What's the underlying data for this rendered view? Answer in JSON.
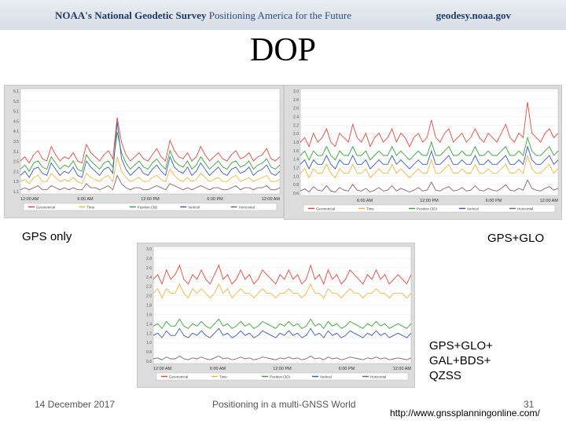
{
  "header": {
    "org_bold": "NOAA's National Geodetic Survey",
    "tagline": "Positioning America for the Future",
    "site": "geodesy.noaa.gov"
  },
  "slide": {
    "title": "DOP"
  },
  "labels": {
    "gps_only": "GPS only",
    "gps_glo": "GPS+GLO",
    "multi_line1": "GPS+GLO+",
    "multi_line2": "GAL+BDS+",
    "multi_line3": "QZSS"
  },
  "footer": {
    "date": "14 December 2017",
    "subject": "Positioning in a multi-GNSS World",
    "page": "31",
    "url": "http://www.gnssplanningonline.com/"
  },
  "colors": {
    "geometrical": "#e8463b",
    "time": "#f4b43a",
    "position": "#3aa63a",
    "vertical": "#3b5bbf",
    "horizontal": "#8a6060"
  },
  "chart_data": [
    {
      "type": "line",
      "yticks": [
        "6.1",
        "5.5",
        "5.1",
        "4.5",
        "4.1",
        "3.5",
        "3.1",
        "2.5",
        "2.1",
        "1.5",
        "1.1"
      ],
      "xticks": [
        "12:00 AM",
        "6:00 AM",
        "12:00 PM",
        "6:00 PM",
        "12:00 AM"
      ],
      "ylim": [
        1.0,
        6.1
      ],
      "legend": [
        "Geometrical",
        "Time",
        "Position (3d)",
        "Vertical",
        "Horizontal"
      ],
      "series": [
        {
          "name": "Geometrical",
          "color": "#e8463b",
          "values": [
            2.6,
            2.8,
            2.5,
            2.9,
            3.1,
            2.7,
            2.6,
            3.3,
            2.9,
            2.6,
            2.8,
            2.7,
            3.0,
            2.6,
            2.5,
            3.4,
            3.0,
            2.8,
            2.6,
            2.9,
            3.1,
            2.7,
            4.7,
            3.5,
            2.9,
            2.6,
            2.8,
            3.0,
            2.7,
            2.6,
            2.9,
            3.2,
            2.8,
            2.6,
            3.6,
            3.1,
            2.8,
            2.7,
            3.0,
            2.6,
            2.8,
            3.3,
            2.9,
            2.6,
            2.8,
            3.0,
            2.7,
            2.6,
            2.9,
            3.1,
            2.7,
            2.8,
            3.0,
            2.6,
            2.8,
            2.9,
            3.2,
            2.7,
            2.6,
            2.8
          ]
        },
        {
          "name": "Time",
          "color": "#f4b43a",
          "values": [
            1.6,
            1.7,
            1.5,
            1.8,
            1.9,
            1.6,
            1.6,
            2.0,
            1.8,
            1.6,
            1.7,
            1.6,
            1.8,
            1.6,
            1.5,
            2.0,
            1.8,
            1.7,
            1.6,
            1.8,
            1.9,
            1.6,
            2.8,
            2.1,
            1.8,
            1.6,
            1.7,
            1.8,
            1.6,
            1.6,
            1.8,
            1.9,
            1.7,
            1.6,
            2.2,
            1.9,
            1.7,
            1.6,
            1.8,
            1.6,
            1.7,
            2.0,
            1.8,
            1.6,
            1.7,
            1.8,
            1.6,
            1.6,
            1.8,
            1.9,
            1.6,
            1.7,
            1.8,
            1.6,
            1.7,
            1.8,
            1.9,
            1.6,
            1.6,
            1.7
          ]
        },
        {
          "name": "Position (3d)",
          "color": "#3aa63a",
          "values": [
            2.2,
            2.4,
            2.1,
            2.5,
            2.6,
            2.3,
            2.2,
            2.8,
            2.5,
            2.2,
            2.4,
            2.3,
            2.6,
            2.2,
            2.1,
            2.9,
            2.6,
            2.4,
            2.2,
            2.5,
            2.6,
            2.3,
            4.0,
            3.0,
            2.5,
            2.2,
            2.4,
            2.6,
            2.3,
            2.2,
            2.5,
            2.7,
            2.4,
            2.2,
            3.1,
            2.6,
            2.4,
            2.3,
            2.6,
            2.2,
            2.4,
            2.8,
            2.5,
            2.2,
            2.4,
            2.6,
            2.3,
            2.2,
            2.5,
            2.6,
            2.3,
            2.4,
            2.6,
            2.2,
            2.4,
            2.5,
            2.7,
            2.3,
            2.2,
            2.4
          ]
        },
        {
          "name": "Vertical",
          "color": "#3b5bbf",
          "values": [
            1.9,
            2.1,
            1.8,
            2.2,
            2.3,
            2.0,
            1.9,
            2.5,
            2.2,
            1.9,
            2.1,
            2.0,
            2.3,
            1.9,
            1.8,
            2.6,
            2.3,
            2.1,
            1.9,
            2.2,
            2.3,
            2.0,
            4.5,
            2.7,
            2.2,
            1.9,
            2.1,
            2.3,
            2.0,
            1.9,
            2.2,
            2.4,
            2.1,
            1.9,
            2.8,
            2.3,
            2.1,
            2.0,
            2.3,
            1.9,
            2.1,
            2.5,
            2.2,
            1.9,
            2.1,
            2.3,
            2.0,
            1.9,
            2.2,
            2.3,
            2.0,
            2.1,
            2.3,
            1.9,
            2.1,
            2.2,
            2.4,
            2.0,
            1.9,
            2.1
          ]
        },
        {
          "name": "Horizontal",
          "color": "#8a6060",
          "values": [
            1.2,
            1.3,
            1.2,
            1.3,
            1.4,
            1.2,
            1.2,
            1.4,
            1.3,
            1.2,
            1.3,
            1.2,
            1.3,
            1.2,
            1.2,
            1.5,
            1.3,
            1.3,
            1.2,
            1.3,
            1.4,
            1.2,
            1.9,
            1.5,
            1.3,
            1.2,
            1.3,
            1.3,
            1.2,
            1.2,
            1.3,
            1.4,
            1.3,
            1.2,
            1.5,
            1.4,
            1.3,
            1.2,
            1.3,
            1.2,
            1.3,
            1.4,
            1.3,
            1.2,
            1.3,
            1.3,
            1.2,
            1.2,
            1.3,
            1.4,
            1.2,
            1.3,
            1.3,
            1.2,
            1.3,
            1.3,
            1.4,
            1.2,
            1.2,
            1.3
          ]
        }
      ]
    },
    {
      "type": "line",
      "yticks": [
        "3.0",
        "2.8",
        "2.6",
        "2.4",
        "2.2",
        "2.0",
        "1.8",
        "1.6",
        "1.4",
        "1.2",
        "1.0",
        "0.8",
        "0.6"
      ],
      "xticks": [
        "6:00 AM",
        "12:00 PM",
        "6:00 PM",
        "12:00 AM"
      ],
      "ylim": [
        0.6,
        3.0
      ],
      "legend": [
        "Geometrical",
        "Time",
        "Position (3D)",
        "Vertical",
        "Horizontal"
      ],
      "series": [
        {
          "name": "Geometrical",
          "color": "#e8463b",
          "values": [
            1.8,
            1.9,
            1.7,
            2.0,
            1.8,
            1.9,
            2.1,
            1.8,
            1.7,
            2.0,
            1.9,
            1.8,
            2.2,
            1.9,
            1.8,
            2.0,
            1.7,
            1.9,
            2.0,
            1.8,
            1.9,
            2.1,
            1.8,
            2.0,
            1.9,
            1.7,
            1.9,
            2.0,
            1.8,
            1.9,
            2.3,
            1.9,
            1.8,
            2.0,
            2.1,
            1.8,
            1.9,
            2.0,
            1.8,
            1.9,
            2.1,
            1.9,
            1.8,
            2.0,
            1.9,
            1.8,
            2.0,
            2.2,
            1.9,
            1.8,
            2.0,
            1.9,
            2.7,
            2.0,
            1.9,
            1.8,
            2.0,
            2.1,
            1.9,
            2.0
          ]
        },
        {
          "name": "Time",
          "color": "#f4b43a",
          "values": [
            1.1,
            1.2,
            1.0,
            1.2,
            1.1,
            1.1,
            1.3,
            1.1,
            1.0,
            1.2,
            1.1,
            1.1,
            1.3,
            1.1,
            1.1,
            1.2,
            1.0,
            1.1,
            1.2,
            1.1,
            1.1,
            1.3,
            1.1,
            1.2,
            1.1,
            1.0,
            1.1,
            1.2,
            1.1,
            1.1,
            1.4,
            1.1,
            1.1,
            1.2,
            1.3,
            1.1,
            1.1,
            1.2,
            1.1,
            1.1,
            1.3,
            1.1,
            1.1,
            1.2,
            1.1,
            1.1,
            1.2,
            1.3,
            1.1,
            1.1,
            1.2,
            1.1,
            1.5,
            1.2,
            1.1,
            1.1,
            1.2,
            1.3,
            1.1,
            1.2
          ]
        },
        {
          "name": "Position (3D)",
          "color": "#3aa63a",
          "values": [
            1.5,
            1.6,
            1.4,
            1.6,
            1.5,
            1.5,
            1.7,
            1.5,
            1.4,
            1.6,
            1.5,
            1.5,
            1.7,
            1.5,
            1.5,
            1.6,
            1.4,
            1.5,
            1.6,
            1.5,
            1.5,
            1.7,
            1.5,
            1.6,
            1.5,
            1.4,
            1.5,
            1.6,
            1.5,
            1.5,
            1.8,
            1.5,
            1.5,
            1.6,
            1.7,
            1.5,
            1.5,
            1.6,
            1.5,
            1.5,
            1.7,
            1.5,
            1.5,
            1.6,
            1.5,
            1.5,
            1.6,
            1.7,
            1.5,
            1.5,
            1.6,
            1.5,
            1.9,
            1.6,
            1.5,
            1.5,
            1.6,
            1.7,
            1.5,
            1.6
          ]
        },
        {
          "name": "Vertical",
          "color": "#3b5bbf",
          "values": [
            1.3,
            1.4,
            1.2,
            1.4,
            1.3,
            1.3,
            1.5,
            1.3,
            1.2,
            1.4,
            1.3,
            1.3,
            1.5,
            1.3,
            1.3,
            1.4,
            1.2,
            1.3,
            1.4,
            1.3,
            1.3,
            1.5,
            1.3,
            1.4,
            1.3,
            1.2,
            1.3,
            1.4,
            1.3,
            1.3,
            1.6,
            1.3,
            1.3,
            1.4,
            1.5,
            1.3,
            1.3,
            1.4,
            1.3,
            1.3,
            1.5,
            1.3,
            1.3,
            1.4,
            1.3,
            1.3,
            1.4,
            1.5,
            1.3,
            1.3,
            1.4,
            1.3,
            1.7,
            1.4,
            1.3,
            1.3,
            1.4,
            1.5,
            1.3,
            1.4
          ]
        },
        {
          "name": "Horizontal",
          "color": "#8a6060",
          "values": [
            0.7,
            0.75,
            0.68,
            0.8,
            0.72,
            0.7,
            0.82,
            0.7,
            0.68,
            0.78,
            0.72,
            0.7,
            0.85,
            0.72,
            0.7,
            0.76,
            0.68,
            0.72,
            0.78,
            0.7,
            0.72,
            0.82,
            0.7,
            0.76,
            0.72,
            0.68,
            0.72,
            0.78,
            0.7,
            0.72,
            0.9,
            0.72,
            0.7,
            0.76,
            0.8,
            0.7,
            0.72,
            0.78,
            0.7,
            0.72,
            0.82,
            0.72,
            0.7,
            0.76,
            0.72,
            0.7,
            0.76,
            0.84,
            0.72,
            0.7,
            0.76,
            0.72,
            0.95,
            0.76,
            0.72,
            0.7,
            0.76,
            0.8,
            0.72,
            0.76
          ]
        }
      ]
    },
    {
      "type": "line",
      "yticks": [
        "3.0",
        "2.8",
        "2.6",
        "2.4",
        "2.2",
        "2.0",
        "1.8",
        "1.6",
        "1.4",
        "1.2",
        "1.0",
        "0.8",
        "0.6"
      ],
      "xticks": [
        "12:00 AM",
        "6:00 AM",
        "12:00 PM",
        "6:00 PM",
        "12:00 AM"
      ],
      "ylim": [
        0.5,
        3.0
      ],
      "legend": [
        "Geometrical",
        "Time",
        "Position (3D)",
        "Vertical",
        "Horizontal"
      ],
      "series": [
        {
          "name": "Geometrical",
          "color": "#e8463b",
          "values": [
            2.3,
            2.4,
            2.2,
            2.5,
            2.3,
            2.4,
            2.6,
            2.3,
            2.2,
            2.4,
            2.3,
            2.5,
            2.3,
            2.2,
            2.4,
            2.6,
            2.3,
            2.4,
            2.2,
            2.3,
            2.5,
            2.3,
            2.4,
            2.2,
            2.3,
            2.5,
            2.4,
            2.3,
            2.2,
            2.4,
            2.3,
            2.5,
            2.3,
            2.4,
            2.2,
            2.3,
            2.6,
            2.3,
            2.4,
            2.2,
            2.5,
            2.3,
            2.4,
            2.2,
            2.3,
            2.5,
            2.4,
            2.3,
            2.2,
            2.4,
            2.3,
            2.5,
            2.3,
            2.4,
            2.2,
            2.3,
            2.4,
            2.3,
            2.2,
            2.4
          ]
        },
        {
          "name": "Time",
          "color": "#f4b43a",
          "values": [
            2.0,
            2.1,
            1.9,
            2.1,
            2.0,
            2.0,
            2.2,
            2.0,
            1.9,
            2.1,
            2.0,
            2.1,
            2.0,
            1.9,
            2.0,
            2.2,
            2.0,
            2.1,
            1.9,
            2.0,
            2.1,
            2.0,
            2.0,
            1.9,
            2.0,
            2.1,
            2.0,
            2.0,
            1.9,
            2.0,
            2.0,
            2.1,
            2.0,
            2.0,
            1.9,
            2.0,
            2.2,
            2.0,
            2.0,
            1.9,
            2.1,
            2.0,
            2.0,
            1.9,
            2.0,
            2.1,
            2.0,
            2.0,
            1.9,
            2.0,
            2.0,
            2.1,
            2.0,
            2.0,
            1.9,
            2.0,
            2.0,
            2.0,
            1.9,
            2.0
          ]
        },
        {
          "name": "Position (3D)",
          "color": "#3aa63a",
          "values": [
            1.3,
            1.35,
            1.25,
            1.4,
            1.3,
            1.3,
            1.45,
            1.3,
            1.25,
            1.35,
            1.3,
            1.4,
            1.3,
            1.25,
            1.35,
            1.45,
            1.3,
            1.35,
            1.25,
            1.3,
            1.4,
            1.3,
            1.35,
            1.25,
            1.3,
            1.4,
            1.35,
            1.3,
            1.25,
            1.35,
            1.3,
            1.4,
            1.3,
            1.35,
            1.25,
            1.3,
            1.45,
            1.3,
            1.35,
            1.25,
            1.4,
            1.3,
            1.35,
            1.25,
            1.3,
            1.4,
            1.35,
            1.3,
            1.25,
            1.35,
            1.3,
            1.4,
            1.3,
            1.35,
            1.25,
            1.3,
            1.35,
            1.3,
            1.25,
            1.35
          ]
        },
        {
          "name": "Vertical",
          "color": "#3b5bbf",
          "values": [
            1.1,
            1.15,
            1.05,
            1.2,
            1.1,
            1.1,
            1.25,
            1.1,
            1.05,
            1.15,
            1.1,
            1.2,
            1.1,
            1.05,
            1.15,
            1.25,
            1.1,
            1.15,
            1.05,
            1.1,
            1.2,
            1.1,
            1.15,
            1.05,
            1.1,
            1.2,
            1.15,
            1.1,
            1.05,
            1.15,
            1.1,
            1.2,
            1.1,
            1.15,
            1.05,
            1.1,
            1.25,
            1.1,
            1.15,
            1.05,
            1.2,
            1.1,
            1.15,
            1.05,
            1.1,
            1.2,
            1.15,
            1.1,
            1.05,
            1.15,
            1.1,
            1.2,
            1.1,
            1.15,
            1.05,
            1.1,
            1.15,
            1.1,
            1.05,
            1.15
          ]
        },
        {
          "name": "Horizontal",
          "color": "#8a6060",
          "values": [
            0.6,
            0.62,
            0.58,
            0.64,
            0.6,
            0.6,
            0.66,
            0.6,
            0.58,
            0.62,
            0.6,
            0.64,
            0.6,
            0.58,
            0.62,
            0.66,
            0.6,
            0.62,
            0.58,
            0.6,
            0.64,
            0.6,
            0.62,
            0.58,
            0.6,
            0.64,
            0.62,
            0.6,
            0.58,
            0.62,
            0.6,
            0.64,
            0.6,
            0.62,
            0.58,
            0.6,
            0.66,
            0.6,
            0.62,
            0.58,
            0.64,
            0.6,
            0.62,
            0.58,
            0.6,
            0.64,
            0.62,
            0.6,
            0.58,
            0.62,
            0.6,
            0.64,
            0.6,
            0.62,
            0.58,
            0.6,
            0.62,
            0.6,
            0.58,
            0.62
          ]
        }
      ]
    }
  ]
}
